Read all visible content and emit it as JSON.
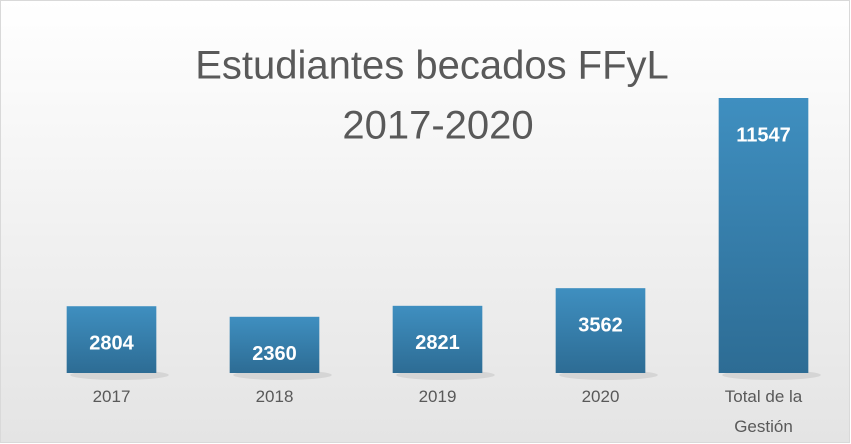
{
  "chart_data": {
    "type": "bar",
    "title": [
      "Estudiantes becados FFyL",
      "2017-2020"
    ],
    "categories": [
      "2017",
      "2018",
      "2019",
      "2020",
      "Total de la Gestión"
    ],
    "values": [
      2804,
      2360,
      2821,
      3562,
      11547
    ],
    "color": "#3a86b4"
  }
}
